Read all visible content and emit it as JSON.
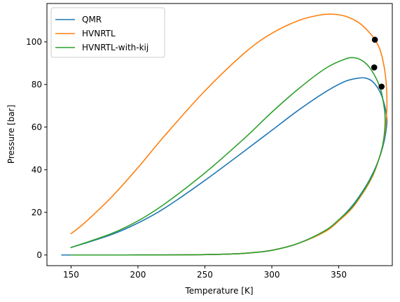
{
  "chart_data": {
    "type": "line",
    "title": "",
    "xlabel": "Temperature [K]",
    "ylabel": "Pressure [bar]",
    "xlim": [
      132,
      390
    ],
    "ylim": [
      -5,
      118
    ],
    "xticks": [
      150,
      200,
      250,
      300,
      350
    ],
    "yticks": [
      0,
      20,
      40,
      60,
      80,
      100
    ],
    "grid": false,
    "legend": "top-left",
    "series": [
      {
        "name": "QMR",
        "color": "#1f77b4",
        "x": [
          150,
          180,
          200,
          220,
          250,
          280,
          300,
          320,
          340,
          355,
          365,
          370,
          375,
          380,
          383,
          385,
          386,
          385,
          383,
          380,
          376,
          370,
          360,
          350,
          340,
          320,
          300,
          280,
          260,
          240,
          220,
          200,
          180,
          160,
          150,
          143
        ],
        "y": [
          3.5,
          9.5,
          15,
          22,
          35,
          49,
          58.5,
          68,
          76.5,
          81.5,
          83,
          83,
          81.5,
          77.5,
          73,
          68,
          63,
          57,
          51,
          45,
          39,
          32,
          23,
          16.5,
          11.5,
          5.5,
          2.2,
          0.8,
          0.3,
          0.1,
          0.03,
          0.01,
          0,
          0,
          0,
          0
        ]
      },
      {
        "name": "HVNRTL",
        "color": "#ff7f0e",
        "x": [
          150,
          160,
          180,
          200,
          220,
          250,
          280,
          300,
          320,
          335,
          345,
          355,
          365,
          372,
          377,
          381,
          384,
          385.5,
          386,
          385,
          383,
          380,
          376,
          370,
          360,
          350,
          340,
          320,
          300,
          280,
          260,
          240,
          220,
          200,
          180,
          160,
          150
        ],
        "y": [
          10,
          15,
          27,
          41,
          56,
          77,
          95,
          104,
          110,
          112.5,
          113,
          112,
          109,
          105,
          101,
          96,
          88,
          80,
          70,
          60,
          52,
          45,
          38,
          31,
          22,
          16,
          11,
          5.5,
          2.2,
          0.8,
          0.3,
          0.1,
          0.03,
          0.01,
          0,
          0,
          0
        ]
      },
      {
        "name": "HVNRTL-with-kij",
        "color": "#2ca02c",
        "x": [
          150,
          180,
          200,
          220,
          250,
          280,
          300,
          320,
          340,
          355,
          362,
          368,
          373,
          377,
          380,
          382,
          383.5,
          384.5,
          384.5,
          383,
          380,
          376,
          370,
          360,
          350,
          340,
          320,
          300,
          280,
          260,
          240,
          220,
          200,
          180,
          160,
          150
        ],
        "y": [
          3.5,
          10,
          16,
          24,
          38.5,
          55,
          67,
          78,
          87.5,
          92,
          92.5,
          91,
          88,
          84,
          80,
          76,
          71,
          66,
          60,
          52,
          45,
          38.5,
          31.5,
          22.5,
          16.5,
          11.5,
          5.5,
          2.2,
          0.8,
          0.3,
          0.1,
          0.03,
          0.01,
          0,
          0,
          0
        ]
      }
    ],
    "markers": {
      "color": "#000000",
      "points": [
        {
          "x": 377,
          "y": 101
        },
        {
          "x": 376.5,
          "y": 88
        },
        {
          "x": 382,
          "y": 79
        }
      ]
    }
  }
}
